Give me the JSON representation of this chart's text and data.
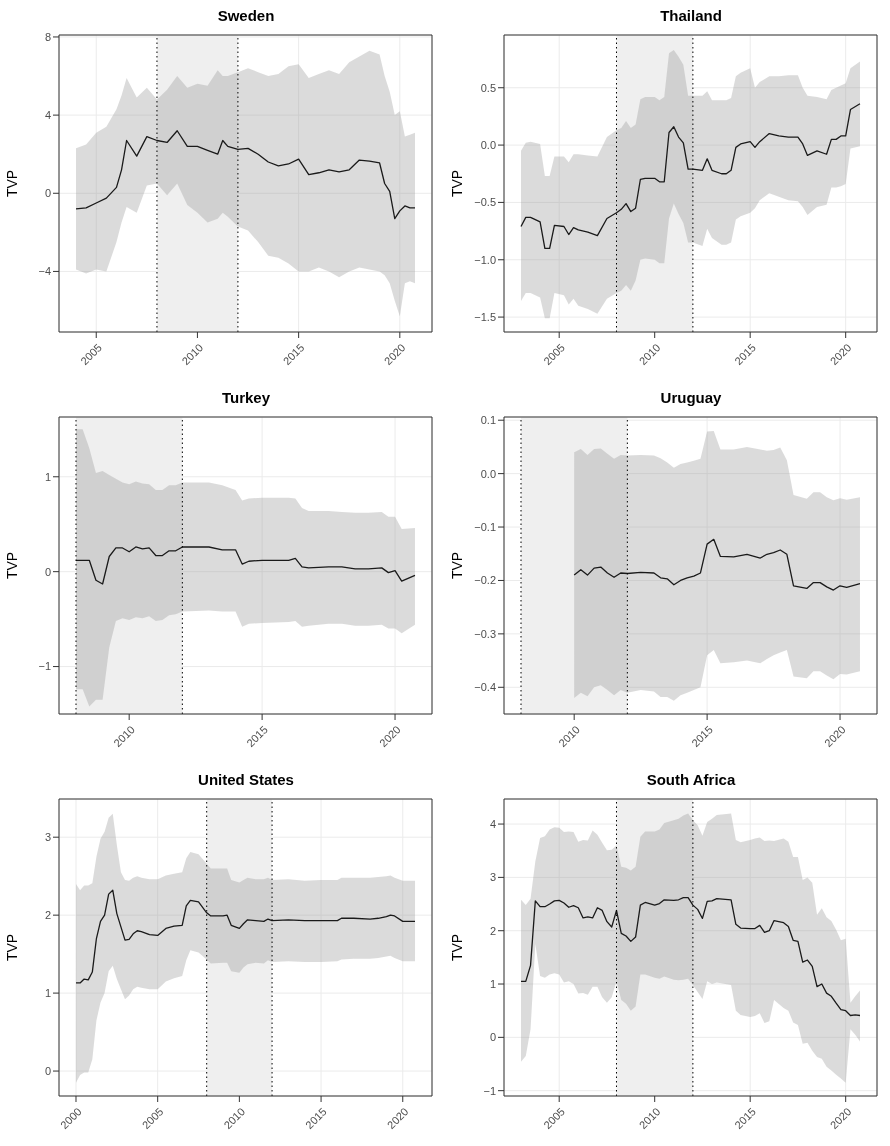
{
  "chart_data": [
    {
      "type": "line",
      "title": "Sweden",
      "ylabel": "TVP",
      "xlim": [
        2003.16,
        2021.59
      ],
      "xticks": [
        2005,
        2010,
        2015,
        2020
      ],
      "ylim": [
        -7.1,
        8.1
      ],
      "yticks": [
        {
          "value": -4,
          "label": "−4"
        },
        0,
        4,
        8
      ],
      "grid": true,
      "bands": [
        {
          "axis": "x",
          "from": 2008,
          "to": 2012,
          "color": "#efefef"
        }
      ],
      "ref_lines": [
        {
          "axis": "x",
          "value": 2008,
          "color": "#000000",
          "line_style": "dotted"
        },
        {
          "axis": "x",
          "value": 2012,
          "color": "#000000",
          "line_style": "dotted"
        }
      ],
      "series": [
        {
          "color": "#1a1a1a",
          "x": [
            2004,
            2004.5,
            2005,
            2005.5,
            2006,
            2006.25,
            2006.5,
            2007,
            2007.5,
            2008,
            2008.5,
            2009,
            2009.5,
            2010,
            2010.5,
            2011,
            2011.25,
            2011.5,
            2012,
            2012.5,
            2013,
            2013.5,
            2014,
            2014.5,
            2015,
            2015.5,
            2016,
            2016.5,
            2017,
            2017.5,
            2018,
            2018.5,
            2019,
            2019.25,
            2019.5,
            2019.75,
            2020,
            2020.25,
            2020.5,
            2020.75
          ],
          "values": [
            -0.8,
            -0.75,
            -0.5,
            -0.25,
            0.3,
            1.2,
            2.7,
            1.9,
            2.9,
            2.7,
            2.6,
            3.2,
            2.4,
            2.4,
            2.2,
            2.0,
            2.7,
            2.4,
            2.25,
            2.3,
            2.0,
            1.6,
            1.4,
            1.5,
            1.75,
            0.95,
            1.05,
            1.2,
            1.1,
            1.2,
            1.7,
            1.65,
            1.55,
            0.5,
            0.1,
            -1.3,
            -0.9,
            -0.65,
            -0.75,
            -0.75
          ],
          "upper": [
            2.3,
            2.5,
            3.1,
            3.4,
            4.3,
            5.0,
            5.9,
            4.9,
            5.4,
            4.8,
            5.3,
            6.0,
            5.4,
            5.6,
            5.5,
            6.3,
            6.0,
            6.0,
            6.2,
            6.4,
            6.2,
            6.0,
            6.1,
            6.5,
            6.6,
            5.9,
            6.1,
            6.3,
            6.1,
            6.7,
            7.0,
            7.3,
            7.1,
            6.0,
            5.2,
            4.0,
            4.2,
            2.9,
            3.0,
            3.1
          ],
          "lower": [
            -3.9,
            -4.1,
            -3.9,
            -4.0,
            -2.5,
            -1.5,
            -0.7,
            -1.0,
            0.4,
            0.5,
            -0.1,
            0.5,
            -0.6,
            -1.0,
            -1.5,
            -1.3,
            -1.0,
            -1.2,
            -1.7,
            -1.9,
            -2.5,
            -3.2,
            -3.3,
            -3.6,
            -4.0,
            -4.0,
            -3.8,
            -4.0,
            -4.3,
            -4.0,
            -3.8,
            -3.9,
            -4.0,
            -4.2,
            -4.6,
            -5.5,
            -6.3,
            -4.6,
            -4.5,
            -4.6
          ]
        }
      ]
    },
    {
      "type": "line",
      "title": "Thailand",
      "ylabel": "TVP",
      "xlim": [
        2002.11,
        2021.64
      ],
      "xticks": [
        2005,
        2010,
        2015,
        2020
      ],
      "ylim": [
        -1.63,
        0.96
      ],
      "yticks": [
        {
          "value": -1.5,
          "label": "−1.5"
        },
        {
          "value": -1,
          "label": "−1.0"
        },
        {
          "value": -0.5,
          "label": "−0.5"
        },
        {
          "value": 0,
          "label": "0.0"
        },
        0.5
      ],
      "grid": true,
      "bands": [
        {
          "axis": "x",
          "from": 2008,
          "to": 2012,
          "color": "#efefef"
        }
      ],
      "ref_lines": [
        {
          "axis": "x",
          "value": 2008,
          "color": "#000000",
          "line_style": "dotted"
        },
        {
          "axis": "x",
          "value": 2012,
          "color": "#000000",
          "line_style": "dotted"
        }
      ],
      "series": [
        {
          "color": "#1a1a1a",
          "x": [
            2003,
            2003.25,
            2003.5,
            2004,
            2004.25,
            2004.5,
            2004.75,
            2005.25,
            2005.5,
            2005.75,
            2006,
            2006.5,
            2007,
            2007.5,
            2008,
            2008.25,
            2008.5,
            2008.75,
            2009,
            2009.25,
            2009.5,
            2010,
            2010.25,
            2010.5,
            2010.75,
            2011,
            2011.25,
            2011.5,
            2011.75,
            2012,
            2012.5,
            2012.75,
            2013,
            2013.5,
            2013.75,
            2014,
            2014.25,
            2014.5,
            2015,
            2015.25,
            2015.5,
            2016,
            2016.5,
            2017,
            2017.5,
            2017.75,
            2018,
            2018.5,
            2019,
            2019.25,
            2019.5,
            2019.75,
            2020,
            2020.25,
            2020.75
          ],
          "values": [
            -0.71,
            -0.63,
            -0.63,
            -0.67,
            -0.9,
            -0.9,
            -0.7,
            -0.71,
            -0.78,
            -0.72,
            -0.74,
            -0.76,
            -0.79,
            -0.64,
            -0.59,
            -0.56,
            -0.51,
            -0.58,
            -0.55,
            -0.3,
            -0.29,
            -0.29,
            -0.32,
            -0.32,
            0.11,
            0.16,
            0.07,
            0.02,
            -0.21,
            -0.21,
            -0.22,
            -0.12,
            -0.22,
            -0.25,
            -0.25,
            -0.22,
            -0.02,
            0.01,
            0.03,
            -0.02,
            0.03,
            0.1,
            0.08,
            0.07,
            0.07,
            0.01,
            -0.09,
            -0.05,
            -0.08,
            0.05,
            0.05,
            0.08,
            0.08,
            0.31,
            0.36
          ],
          "upper": [
            -0.05,
            0.02,
            0.03,
            0.01,
            -0.27,
            -0.27,
            -0.1,
            -0.1,
            -0.15,
            -0.08,
            -0.08,
            -0.09,
            -0.1,
            0.07,
            0.13,
            0.15,
            0.21,
            0.15,
            0.18,
            0.4,
            0.42,
            0.42,
            0.39,
            0.42,
            0.8,
            0.83,
            0.77,
            0.7,
            0.43,
            0.43,
            0.43,
            0.47,
            0.39,
            0.39,
            0.39,
            0.41,
            0.6,
            0.63,
            0.67,
            0.5,
            0.55,
            0.6,
            0.6,
            0.61,
            0.61,
            0.5,
            0.43,
            0.42,
            0.4,
            0.48,
            0.5,
            0.52,
            0.54,
            0.67,
            0.73
          ],
          "lower": [
            -1.36,
            -1.29,
            -1.29,
            -1.33,
            -1.51,
            -1.51,
            -1.29,
            -1.31,
            -1.39,
            -1.34,
            -1.4,
            -1.43,
            -1.47,
            -1.34,
            -1.29,
            -1.27,
            -1.22,
            -1.27,
            -1.18,
            -1.0,
            -0.99,
            -1.0,
            -1.03,
            -1.03,
            -0.64,
            -0.51,
            -0.6,
            -0.68,
            -0.85,
            -0.85,
            -0.88,
            -0.73,
            -0.81,
            -0.87,
            -0.87,
            -0.85,
            -0.65,
            -0.62,
            -0.59,
            -0.55,
            -0.48,
            -0.42,
            -0.45,
            -0.48,
            -0.49,
            -0.54,
            -0.61,
            -0.54,
            -0.52,
            -0.37,
            -0.37,
            -0.36,
            -0.34,
            -0.03,
            -0.01
          ]
        }
      ]
    },
    {
      "type": "line",
      "title": "Turkey",
      "ylabel": "TVP",
      "xlim": [
        2007.36,
        2021.39
      ],
      "xticks": [
        2010,
        2015,
        2020
      ],
      "ylim": [
        -1.5,
        1.63
      ],
      "yticks": [
        {
          "value": -1,
          "label": "−1"
        },
        0,
        1
      ],
      "grid": true,
      "bands": [
        {
          "axis": "x",
          "from": 2008,
          "to": 2012,
          "color": "#efefef"
        }
      ],
      "ref_lines": [
        {
          "axis": "x",
          "value": 2008,
          "color": "#000000",
          "line_style": "dotted"
        },
        {
          "axis": "x",
          "value": 2012,
          "color": "#000000",
          "line_style": "dotted"
        }
      ],
      "series": [
        {
          "color": "#1a1a1a",
          "x": [
            2008,
            2008.25,
            2008.5,
            2008.75,
            2009,
            2009.25,
            2009.5,
            2009.75,
            2010,
            2010.25,
            2010.5,
            2010.75,
            2011,
            2011.25,
            2011.5,
            2011.75,
            2012,
            2013,
            2013.5,
            2014,
            2014.25,
            2014.5,
            2015,
            2016,
            2016.25,
            2016.5,
            2016.75,
            2017.5,
            2018,
            2018.5,
            2019,
            2019.5,
            2019.75,
            2020,
            2020.25,
            2020.75
          ],
          "values": [
            0.12,
            0.12,
            0.12,
            -0.09,
            -0.13,
            0.16,
            0.25,
            0.25,
            0.21,
            0.26,
            0.24,
            0.25,
            0.17,
            0.17,
            0.22,
            0.22,
            0.26,
            0.26,
            0.23,
            0.23,
            0.08,
            0.11,
            0.12,
            0.12,
            0.14,
            0.05,
            0.04,
            0.05,
            0.05,
            0.03,
            0.03,
            0.04,
            -0.01,
            0.01,
            -0.1,
            -0.04
          ],
          "upper": [
            1.5,
            1.5,
            1.3,
            1.04,
            1.06,
            1.02,
            0.98,
            0.94,
            0.92,
            0.95,
            0.93,
            0.92,
            0.86,
            0.86,
            0.91,
            0.91,
            0.94,
            0.94,
            0.91,
            0.86,
            0.75,
            0.77,
            0.78,
            0.78,
            0.77,
            0.67,
            0.64,
            0.64,
            0.63,
            0.62,
            0.62,
            0.63,
            0.58,
            0.58,
            0.45,
            0.46
          ],
          "lower": [
            -1.24,
            -1.24,
            -1.42,
            -1.35,
            -1.35,
            -0.8,
            -0.52,
            -0.49,
            -0.51,
            -0.48,
            -0.49,
            -0.47,
            -0.52,
            -0.51,
            -0.46,
            -0.45,
            -0.42,
            -0.41,
            -0.42,
            -0.42,
            -0.58,
            -0.55,
            -0.54,
            -0.53,
            -0.52,
            -0.58,
            -0.57,
            -0.55,
            -0.55,
            -0.57,
            -0.57,
            -0.56,
            -0.6,
            -0.6,
            -0.65,
            -0.56
          ]
        }
      ]
    },
    {
      "type": "line",
      "title": "Uruguay",
      "ylabel": "TVP",
      "xlim": [
        2007.36,
        2021.39
      ],
      "xticks": [
        2010,
        2015,
        2020
      ],
      "ylim": [
        -0.45,
        0.106
      ],
      "yticks": [
        {
          "value": -0.4,
          "label": "−0.4"
        },
        {
          "value": -0.3,
          "label": "−0.3"
        },
        {
          "value": -0.2,
          "label": "−0.2"
        },
        {
          "value": -0.1,
          "label": "−0.1"
        },
        {
          "value": 0,
          "label": "0.0"
        },
        0.1
      ],
      "grid": true,
      "bands": [
        {
          "axis": "x",
          "from": 2008,
          "to": 2012,
          "color": "#efefef"
        }
      ],
      "ref_lines": [
        {
          "axis": "x",
          "value": 2008,
          "color": "#000000",
          "line_style": "dotted"
        },
        {
          "axis": "x",
          "value": 2012,
          "color": "#000000",
          "line_style": "dotted"
        }
      ],
      "series": [
        {
          "color": "#1a1a1a",
          "x": [
            2010,
            2010.25,
            2010.5,
            2010.75,
            2011,
            2011.25,
            2011.5,
            2011.75,
            2012,
            2012.5,
            2013,
            2013.25,
            2013.5,
            2013.75,
            2014,
            2014.25,
            2014.5,
            2014.75,
            2015,
            2015.25,
            2015.5,
            2016,
            2016.5,
            2017,
            2017.25,
            2017.5,
            2017.75,
            2018,
            2018.25,
            2018.75,
            2019,
            2019.25,
            2019.5,
            2019.75,
            2020,
            2020.25,
            2020.75
          ],
          "values": [
            -0.19,
            -0.18,
            -0.19,
            -0.177,
            -0.175,
            -0.186,
            -0.194,
            -0.186,
            -0.187,
            -0.185,
            -0.186,
            -0.195,
            -0.197,
            -0.208,
            -0.2,
            -0.195,
            -0.192,
            -0.186,
            -0.132,
            -0.123,
            -0.155,
            -0.156,
            -0.151,
            -0.158,
            -0.151,
            -0.148,
            -0.143,
            -0.151,
            -0.21,
            -0.215,
            -0.204,
            -0.204,
            -0.212,
            -0.218,
            -0.21,
            -0.213,
            -0.206
          ],
          "upper": [
            0.04,
            0.046,
            0.035,
            0.046,
            0.047,
            0.037,
            0.028,
            0.035,
            0.034,
            0.035,
            0.034,
            0.029,
            0.021,
            0.011,
            0.018,
            0.021,
            0.024,
            0.028,
            0.079,
            0.08,
            0.045,
            0.045,
            0.05,
            0.045,
            0.043,
            0.044,
            0.049,
            0.025,
            -0.04,
            -0.047,
            -0.035,
            -0.035,
            -0.044,
            -0.05,
            -0.046,
            -0.049,
            -0.044
          ],
          "lower": [
            -0.42,
            -0.41,
            -0.417,
            -0.4,
            -0.396,
            -0.405,
            -0.415,
            -0.405,
            -0.41,
            -0.405,
            -0.408,
            -0.418,
            -0.418,
            -0.425,
            -0.415,
            -0.41,
            -0.405,
            -0.4,
            -0.34,
            -0.33,
            -0.355,
            -0.353,
            -0.35,
            -0.355,
            -0.347,
            -0.34,
            -0.335,
            -0.33,
            -0.38,
            -0.383,
            -0.37,
            -0.37,
            -0.378,
            -0.385,
            -0.375,
            -0.376,
            -0.37
          ]
        }
      ]
    },
    {
      "type": "line",
      "title": "United States",
      "ylabel": "TVP",
      "xlim": [
        1998.96,
        2021.79
      ],
      "xticks": [
        2000,
        2005,
        2010,
        2015,
        2020
      ],
      "ylim": [
        -0.32,
        3.49
      ],
      "yticks": [
        0,
        1,
        2,
        3
      ],
      "grid": true,
      "bands": [
        {
          "axis": "x",
          "from": 2008,
          "to": 2012,
          "color": "#efefef"
        }
      ],
      "ref_lines": [
        {
          "axis": "x",
          "value": 2008,
          "color": "#000000",
          "line_style": "dotted"
        },
        {
          "axis": "x",
          "value": 2012,
          "color": "#000000",
          "line_style": "dotted"
        }
      ],
      "series": [
        {
          "color": "#1a1a1a",
          "x": [
            2000,
            2000.25,
            2000.5,
            2000.75,
            2001,
            2001.25,
            2001.5,
            2001.75,
            2002,
            2002.25,
            2002.5,
            2002.75,
            2003,
            2003.25,
            2003.5,
            2003.75,
            2004,
            2004.5,
            2005,
            2005.5,
            2006,
            2006.5,
            2006.75,
            2007,
            2007.5,
            2008,
            2008.25,
            2009,
            2009.25,
            2009.5,
            2010,
            2010.25,
            2010.5,
            2011,
            2011.5,
            2011.75,
            2012,
            2013,
            2014,
            2015,
            2016,
            2016.25,
            2017,
            2018,
            2018.5,
            2019,
            2019.25,
            2019.5,
            2020,
            2020.75
          ],
          "values": [
            1.13,
            1.13,
            1.18,
            1.17,
            1.27,
            1.7,
            1.92,
            2.0,
            2.27,
            2.32,
            2.02,
            1.85,
            1.68,
            1.69,
            1.76,
            1.8,
            1.79,
            1.75,
            1.74,
            1.83,
            1.86,
            1.87,
            2.12,
            2.19,
            2.17,
            2.03,
            1.99,
            1.99,
            2.0,
            1.87,
            1.83,
            1.89,
            1.94,
            1.93,
            1.92,
            1.95,
            1.93,
            1.94,
            1.93,
            1.93,
            1.93,
            1.96,
            1.96,
            1.95,
            1.96,
            1.98,
            2.0,
            1.99,
            1.92,
            1.92
          ],
          "upper": [
            2.4,
            2.32,
            2.38,
            2.38,
            2.41,
            2.75,
            2.98,
            3.07,
            3.25,
            3.3,
            2.9,
            2.55,
            2.45,
            2.44,
            2.48,
            2.5,
            2.48,
            2.46,
            2.46,
            2.51,
            2.53,
            2.55,
            2.73,
            2.81,
            2.78,
            2.66,
            2.6,
            2.6,
            2.6,
            2.45,
            2.42,
            2.45,
            2.48,
            2.46,
            2.46,
            2.48,
            2.45,
            2.46,
            2.44,
            2.45,
            2.45,
            2.48,
            2.48,
            2.48,
            2.49,
            2.5,
            2.51,
            2.48,
            2.44,
            2.44
          ],
          "lower": [
            -0.15,
            -0.05,
            -0.02,
            -0.02,
            0.15,
            0.65,
            0.88,
            1.0,
            1.28,
            1.35,
            1.18,
            1.05,
            0.92,
            0.97,
            1.05,
            1.08,
            1.07,
            1.05,
            1.05,
            1.15,
            1.19,
            1.22,
            1.42,
            1.55,
            1.52,
            1.43,
            1.38,
            1.39,
            1.39,
            1.28,
            1.26,
            1.33,
            1.37,
            1.39,
            1.38,
            1.42,
            1.4,
            1.41,
            1.4,
            1.4,
            1.41,
            1.43,
            1.44,
            1.44,
            1.45,
            1.47,
            1.48,
            1.45,
            1.41,
            1.41
          ]
        }
      ]
    },
    {
      "type": "line",
      "title": "South Africa",
      "ylabel": "TVP",
      "xlim": [
        2002.11,
        2021.64
      ],
      "xticks": [
        2005,
        2010,
        2015,
        2020
      ],
      "ylim": [
        -1.1,
        4.47
      ],
      "yticks": [
        {
          "value": -1,
          "label": "−1"
        },
        0,
        1,
        2,
        3,
        4
      ],
      "grid": true,
      "bands": [
        {
          "axis": "x",
          "from": 2008,
          "to": 2012,
          "color": "#efefef"
        }
      ],
      "ref_lines": [
        {
          "axis": "x",
          "value": 2008,
          "color": "#000000",
          "line_style": "dotted"
        },
        {
          "axis": "x",
          "value": 2012,
          "color": "#000000",
          "line_style": "dotted"
        }
      ],
      "series": [
        {
          "color": "#1a1a1a",
          "x": [
            2003,
            2003.25,
            2003.5,
            2003.75,
            2004,
            2004.25,
            2004.5,
            2004.75,
            2005,
            2005.25,
            2005.5,
            2005.75,
            2006,
            2006.25,
            2006.5,
            2006.75,
            2007,
            2007.25,
            2007.5,
            2007.75,
            2008,
            2008.25,
            2008.5,
            2008.75,
            2009,
            2009.25,
            2009.5,
            2010,
            2010.25,
            2010.5,
            2011,
            2011.25,
            2011.5,
            2011.75,
            2012,
            2012.25,
            2012.5,
            2012.75,
            2013,
            2013.25,
            2014,
            2014.25,
            2014.5,
            2015,
            2015.25,
            2015.5,
            2015.75,
            2016,
            2016.25,
            2016.75,
            2017,
            2017.25,
            2017.5,
            2017.75,
            2018,
            2018.25,
            2018.5,
            2018.75,
            2019,
            2019.25,
            2019.5,
            2019.75,
            2020,
            2020.25,
            2020.5,
            2020.75
          ],
          "values": [
            1.05,
            1.05,
            1.35,
            2.56,
            2.45,
            2.45,
            2.5,
            2.56,
            2.57,
            2.52,
            2.44,
            2.47,
            2.43,
            2.24,
            2.26,
            2.24,
            2.43,
            2.38,
            2.17,
            2.07,
            2.38,
            1.95,
            1.9,
            1.8,
            1.88,
            2.48,
            2.53,
            2.48,
            2.51,
            2.58,
            2.57,
            2.58,
            2.62,
            2.62,
            2.48,
            2.4,
            2.23,
            2.55,
            2.56,
            2.6,
            2.58,
            2.12,
            2.05,
            2.04,
            2.04,
            2.1,
            1.97,
            2.0,
            2.19,
            2.15,
            2.08,
            1.82,
            1.8,
            1.41,
            1.45,
            1.33,
            0.95,
            1.0,
            0.83,
            0.77,
            0.64,
            0.52,
            0.5,
            0.41,
            0.42,
            0.41
          ],
          "upper": [
            2.58,
            2.48,
            2.6,
            3.3,
            3.74,
            3.77,
            3.9,
            3.94,
            3.93,
            3.85,
            3.86,
            3.85,
            3.67,
            3.7,
            3.69,
            3.88,
            3.8,
            3.65,
            3.51,
            3.52,
            3.6,
            3.2,
            3.18,
            3.13,
            3.2,
            3.76,
            3.86,
            3.86,
            3.9,
            4.02,
            4.07,
            4.1,
            4.16,
            4.2,
            4.07,
            3.98,
            3.78,
            4.04,
            4.1,
            4.17,
            4.2,
            3.7,
            3.66,
            3.7,
            3.73,
            3.75,
            3.68,
            3.69,
            3.68,
            3.73,
            3.67,
            3.38,
            3.38,
            2.95,
            3.0,
            2.9,
            2.3,
            2.42,
            2.25,
            2.18,
            2.02,
            1.82,
            1.85,
            0.65,
            0.77,
            0.88
          ],
          "lower": [
            -0.46,
            -0.35,
            0.15,
            1.75,
            1.15,
            1.12,
            1.18,
            1.2,
            1.18,
            1.03,
            1.05,
            1.0,
            0.82,
            0.83,
            0.8,
            0.95,
            0.95,
            0.75,
            0.65,
            0.75,
            1.05,
            0.7,
            0.63,
            0.5,
            0.58,
            1.18,
            1.18,
            1.12,
            1.1,
            1.14,
            1.08,
            1.07,
            1.08,
            1.1,
            0.98,
            0.85,
            0.72,
            1.05,
            1.0,
            1.03,
            0.98,
            0.5,
            0.42,
            0.38,
            0.4,
            0.45,
            0.27,
            0.3,
            0.7,
            0.55,
            0.5,
            0.28,
            0.23,
            -0.12,
            -0.1,
            -0.25,
            -0.37,
            -0.4,
            -0.55,
            -0.62,
            -0.7,
            -0.77,
            -0.85,
            0.15,
            0.05,
            -0.08
          ]
        }
      ]
    }
  ]
}
